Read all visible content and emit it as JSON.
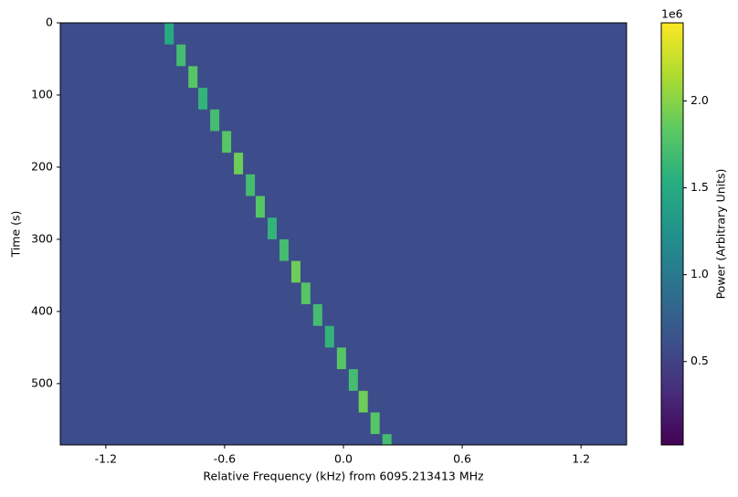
{
  "chart_data": {
    "type": "spectrogram",
    "xlabel": "Relative Frequency (kHz) from 6095.213413 MHz",
    "ylabel": "Time (s)",
    "colorbar_label": "Power (Arbitrary Units)",
    "colorbar_offset": "1e6",
    "colormap": "viridis",
    "xlim": [
      -1.43,
      1.43
    ],
    "xticks": [
      -1.2,
      -0.6,
      {
        "value": 0,
        "label": "0.0"
      },
      0.6,
      1.2
    ],
    "ylim": [
      585,
      0
    ],
    "yticks": [
      0,
      100,
      200,
      300,
      400,
      500
    ],
    "clim": [
      0.02,
      2.45
    ],
    "cticks": [
      0.5,
      {
        "value": 1.0,
        "label": "1.0"
      },
      1.5,
      {
        "value": 2.0,
        "label": "2.0"
      }
    ],
    "signal": {
      "x": [
        -0.88,
        -0.82,
        -0.76,
        -0.71,
        -0.65,
        -0.59,
        -0.53,
        -0.47,
        -0.42,
        -0.36,
        -0.3,
        -0.24,
        -0.19,
        -0.13,
        -0.07,
        -0.01,
        0.05,
        0.1,
        0.16,
        0.22
      ],
      "y": [
        0,
        30,
        60,
        90,
        120,
        150,
        180,
        210,
        240,
        270,
        300,
        330,
        360,
        390,
        420,
        450,
        480,
        510,
        540,
        570
      ],
      "values": [
        1.5,
        1.7,
        1.8,
        1.6,
        1.7,
        1.8,
        1.9,
        1.7,
        1.8,
        1.6,
        1.7,
        1.9,
        1.8,
        1.7,
        1.6,
        1.8,
        1.7,
        1.9,
        1.8,
        1.7
      ]
    }
  }
}
